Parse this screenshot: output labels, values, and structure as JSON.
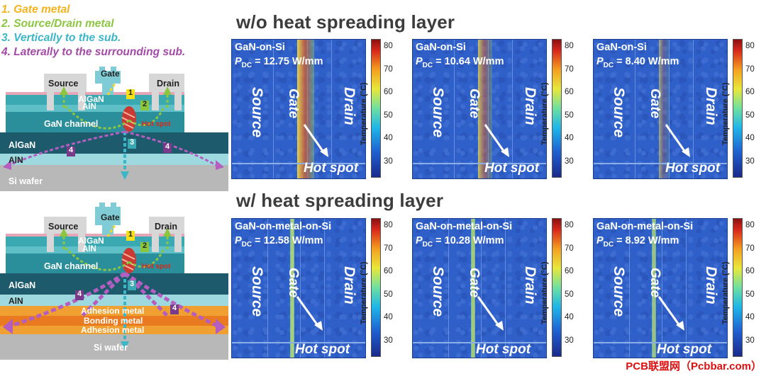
{
  "legend": [
    {
      "text": "1. Gate metal",
      "color": "#f5b21a"
    },
    {
      "text": "2. Source/Drain metal",
      "color": "#8cc63f"
    },
    {
      "text": "3. Vertically to the sub.",
      "color": "#3bb6c6"
    },
    {
      "text": "4. Laterally to the surrounding sub.",
      "color": "#a44aa8"
    }
  ],
  "diagram_top": {
    "source": "Source",
    "gate": "Gate",
    "drain": "Drain",
    "algan_top": "AlGaN",
    "aln_top": "AlN",
    "channel": "GaN channel",
    "hotspot": "Hot spot",
    "algan": "AlGaN",
    "aln": "AlN",
    "substrate": "Si wafer",
    "markers": [
      "1",
      "2",
      "3",
      "4",
      "4"
    ]
  },
  "diagram_bottom": {
    "source": "Source",
    "gate": "Gate",
    "drain": "Drain",
    "algan_top": "AlGaN",
    "aln_top": "AlN",
    "channel": "GaN channel",
    "hotspot": "Hot spot",
    "algan": "AlGaN",
    "aln": "AlN",
    "adhesion1": "Adhesion metal",
    "bonding": "Bonding metal",
    "adhesion2": "Adhesion metal",
    "substrate": "Si wafer",
    "markers": [
      "1",
      "2",
      "3",
      "4",
      "4"
    ]
  },
  "section_top": "w/o heat spreading layer",
  "section_bottom": "w/ heat spreading layer",
  "maps_top": [
    {
      "title": "GaN-on-Si",
      "p_prefix": "P",
      "p_sub": "DC",
      "p_value": " = 12.75 W/mm",
      "source": "Source",
      "gate": "Gate",
      "drain": "Drain",
      "hotspot": "Hot spot"
    },
    {
      "title": "GaN-on-Si",
      "p_prefix": "P",
      "p_sub": "DC",
      "p_value": " = 10.64 W/mm",
      "source": "Source",
      "gate": "Gate",
      "drain": "Drain",
      "hotspot": "Hot spot"
    },
    {
      "title": "GaN-on-Si",
      "p_prefix": "P",
      "p_sub": "DC",
      "p_value": " = 8.40 W/mm",
      "source": "Source",
      "gate": "Gate",
      "drain": "Drain",
      "hotspot": "Hot spot"
    }
  ],
  "maps_bottom": [
    {
      "title": "GaN-on-metal-on-Si",
      "p_prefix": "P",
      "p_sub": "DC",
      "p_value": " = 12.58 W/mm",
      "source": "Source",
      "gate": "Gate",
      "drain": "Drain",
      "hotspot": "Hot spot"
    },
    {
      "title": "GaN-on-metal-on-Si",
      "p_prefix": "P",
      "p_sub": "DC",
      "p_value": " = 10.28 W/mm",
      "source": "Source",
      "gate": "Gate",
      "drain": "Drain",
      "hotspot": "Hot spot"
    },
    {
      "title": "GaN-on-metal-on-Si",
      "p_prefix": "P",
      "p_sub": "DC",
      "p_value": " = 8.92 W/mm",
      "source": "Source",
      "gate": "Gate",
      "drain": "Drain",
      "hotspot": "Hot spot"
    }
  ],
  "colorbar": {
    "title": "Temperature (°C)",
    "ticks": [
      "80",
      "70",
      "60",
      "50",
      "40",
      "30"
    ]
  },
  "watermark": "PCB联盟网（Pcbbar.com）"
}
